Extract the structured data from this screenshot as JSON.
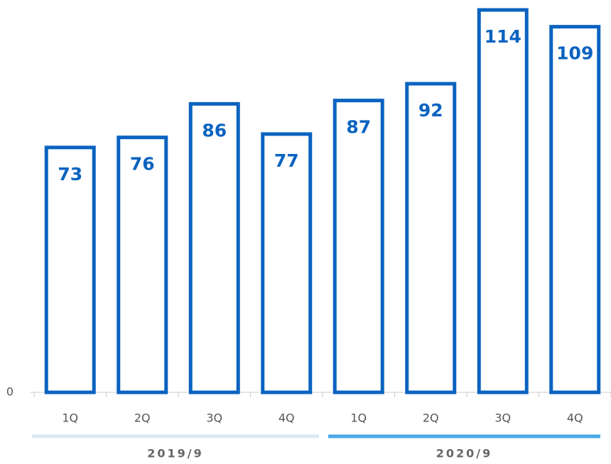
{
  "chart_data": {
    "type": "bar",
    "categories": [
      "1Q",
      "2Q",
      "3Q",
      "4Q",
      "1Q",
      "2Q",
      "3Q",
      "4Q"
    ],
    "values": [
      73,
      76,
      86,
      77,
      87,
      92,
      114,
      109
    ],
    "color": "#0a63c0",
    "ylim": [
      0,
      114
    ],
    "yticks": [
      0
    ],
    "groups": [
      {
        "name": "2019/9",
        "color": "#dce9f5"
      },
      {
        "name": "2020/9",
        "color": "#4aa8e8"
      }
    ]
  }
}
